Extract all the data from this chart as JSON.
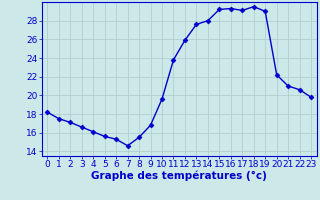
{
  "hours": [
    0,
    1,
    2,
    3,
    4,
    5,
    6,
    7,
    8,
    9,
    10,
    11,
    12,
    13,
    14,
    15,
    16,
    17,
    18,
    19,
    20,
    21,
    22,
    23
  ],
  "temperatures": [
    18.2,
    17.5,
    17.1,
    16.6,
    16.1,
    15.6,
    15.3,
    14.6,
    15.5,
    16.8,
    19.6,
    23.8,
    25.9,
    27.6,
    28.0,
    29.2,
    29.3,
    29.1,
    29.5,
    29.0,
    22.2,
    21.0,
    20.6,
    19.8
  ],
  "line_color": "#0000cc",
  "marker": "D",
  "marker_size": 2.5,
  "bg_color": "#cce8e8",
  "grid_color": "#aacccc",
  "xlabel": "Graphe des températures (°c)",
  "xlim": [
    -0.5,
    23.5
  ],
  "ylim": [
    13.5,
    30.0
  ],
  "yticks": [
    14,
    16,
    18,
    20,
    22,
    24,
    26,
    28
  ],
  "xticks": [
    0,
    1,
    2,
    3,
    4,
    5,
    6,
    7,
    8,
    9,
    10,
    11,
    12,
    13,
    14,
    15,
    16,
    17,
    18,
    19,
    20,
    21,
    22,
    23
  ],
  "tick_color": "#0000cc",
  "label_color": "#0000cc",
  "font_size": 6.5,
  "xlabel_fontsize": 7.5,
  "line_width": 1.0
}
